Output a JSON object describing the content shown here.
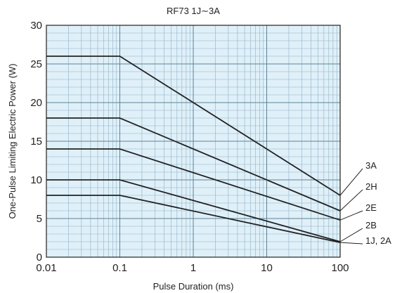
{
  "colors": {
    "plot_background": "#dff0f9",
    "minor_grid": "#8fb1c4",
    "major_grid": "#5f8295",
    "series_line": "#222222",
    "text": "#222222"
  },
  "chart_data": {
    "type": "line",
    "title": "RF73 1J∼3A",
    "xlabel": "Pulse Duration (ms)",
    "ylabel": "One-Pulse Limiting Electric Power (W)",
    "x_scale": "log",
    "xlim": [
      0.01,
      100
    ],
    "ylim": [
      0,
      30
    ],
    "grid": true,
    "x_ticks": [
      {
        "value": 0.01,
        "label": "0.01"
      },
      {
        "value": 0.1,
        "label": "0.1"
      },
      {
        "value": 1,
        "label": "1"
      },
      {
        "value": 10,
        "label": "10"
      },
      {
        "value": 100,
        "label": "100"
      }
    ],
    "y_ticks": [
      {
        "value": 0,
        "label": "0"
      },
      {
        "value": 5,
        "label": "5"
      },
      {
        "value": 10,
        "label": "10"
      },
      {
        "value": 15,
        "label": "15"
      },
      {
        "value": 20,
        "label": "20"
      },
      {
        "value": 25,
        "label": "25"
      },
      {
        "value": 30,
        "label": "30"
      }
    ],
    "series": [
      {
        "name": "3A",
        "x": [
          0.01,
          0.1,
          100
        ],
        "y": [
          26,
          26,
          8
        ]
      },
      {
        "name": "2H",
        "x": [
          0.01,
          0.1,
          100
        ],
        "y": [
          18,
          18,
          6
        ]
      },
      {
        "name": "2E",
        "x": [
          0.01,
          0.1,
          100
        ],
        "y": [
          14,
          14,
          4.8
        ]
      },
      {
        "name": "2B",
        "x": [
          0.01,
          0.1,
          100
        ],
        "y": [
          10,
          10,
          2
        ]
      },
      {
        "name": "1J, 2A",
        "x": [
          0.01,
          0.1,
          100
        ],
        "y": [
          8,
          8,
          1.9
        ]
      }
    ]
  }
}
